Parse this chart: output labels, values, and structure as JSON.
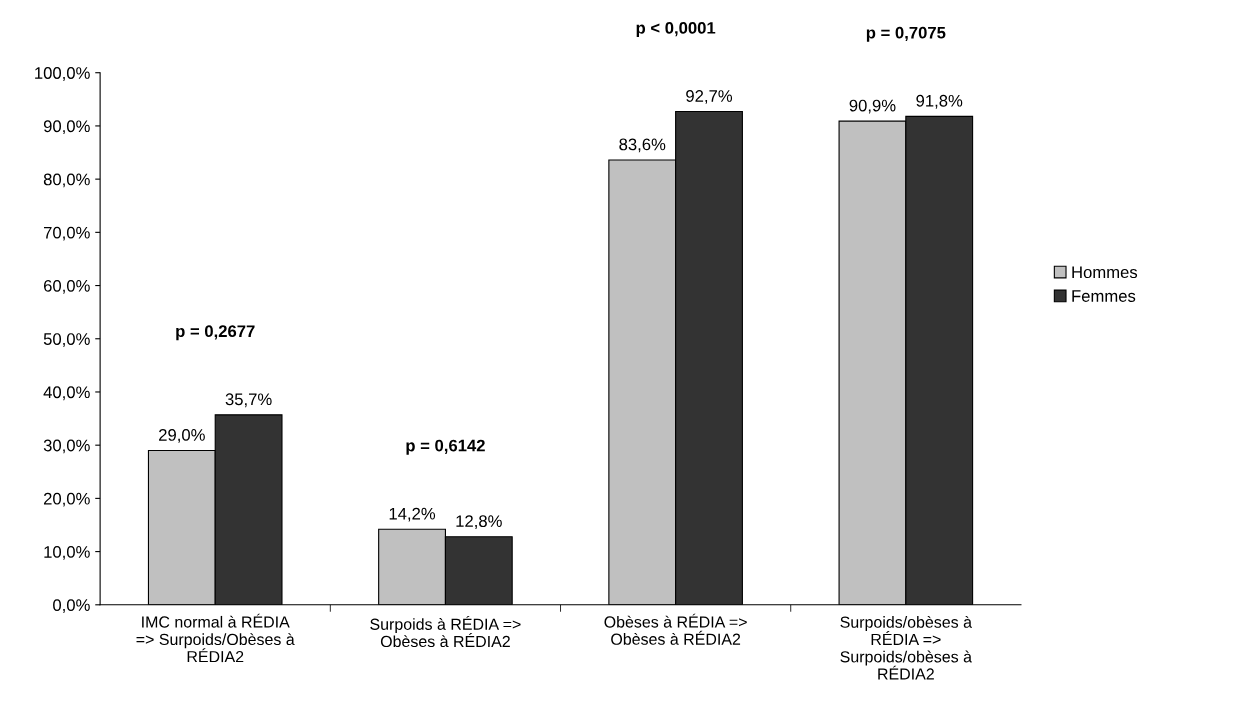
{
  "chart_data": {
    "type": "bar",
    "categories": [
      "IMC normal à RÉDIA\n=> Surpoids/Obèses à\nRÉDIA2",
      "Surpoids à RÉDIA =>\nObèses à RÉDIA2",
      "Obèses à RÉDIA =>\nObèses à RÉDIA2",
      "Surpoids/obèses à\nRÉDIA =>\nSurpoids/obèses à\nRÉDIA2"
    ],
    "series": [
      {
        "name": "Hommes",
        "color": "#c0c0c0",
        "values": [
          29.0,
          14.2,
          83.6,
          90.9
        ],
        "value_labels": [
          "29,0%",
          "14,2%",
          "83,6%",
          "90,9%"
        ]
      },
      {
        "name": "Femmes",
        "color": "#333333",
        "values": [
          35.7,
          12.8,
          92.7,
          91.8
        ],
        "value_labels": [
          "35,7%",
          "12,8%",
          "92,7%",
          "91,8%"
        ]
      }
    ],
    "ylim": [
      0,
      100
    ],
    "yticks": [
      {
        "value": 0,
        "label": "0,0%"
      },
      {
        "value": 10,
        "label": "10,0%"
      },
      {
        "value": 20,
        "label": "20,0%"
      },
      {
        "value": 30,
        "label": "30,0%"
      },
      {
        "value": 40,
        "label": "40,0%"
      },
      {
        "value": 50,
        "label": "50,0%"
      },
      {
        "value": 60,
        "label": "60,0%"
      },
      {
        "value": 70,
        "label": "70,0%"
      },
      {
        "value": 80,
        "label": "80,0%"
      },
      {
        "value": 90,
        "label": "90,0%"
      },
      {
        "value": 100,
        "label": "100,0%"
      }
    ],
    "annotations": [
      "p = 0,2677",
      "p = 0,6142",
      "p < 0,0001",
      "p = 0,7075"
    ],
    "grid": false,
    "legend": "right"
  }
}
